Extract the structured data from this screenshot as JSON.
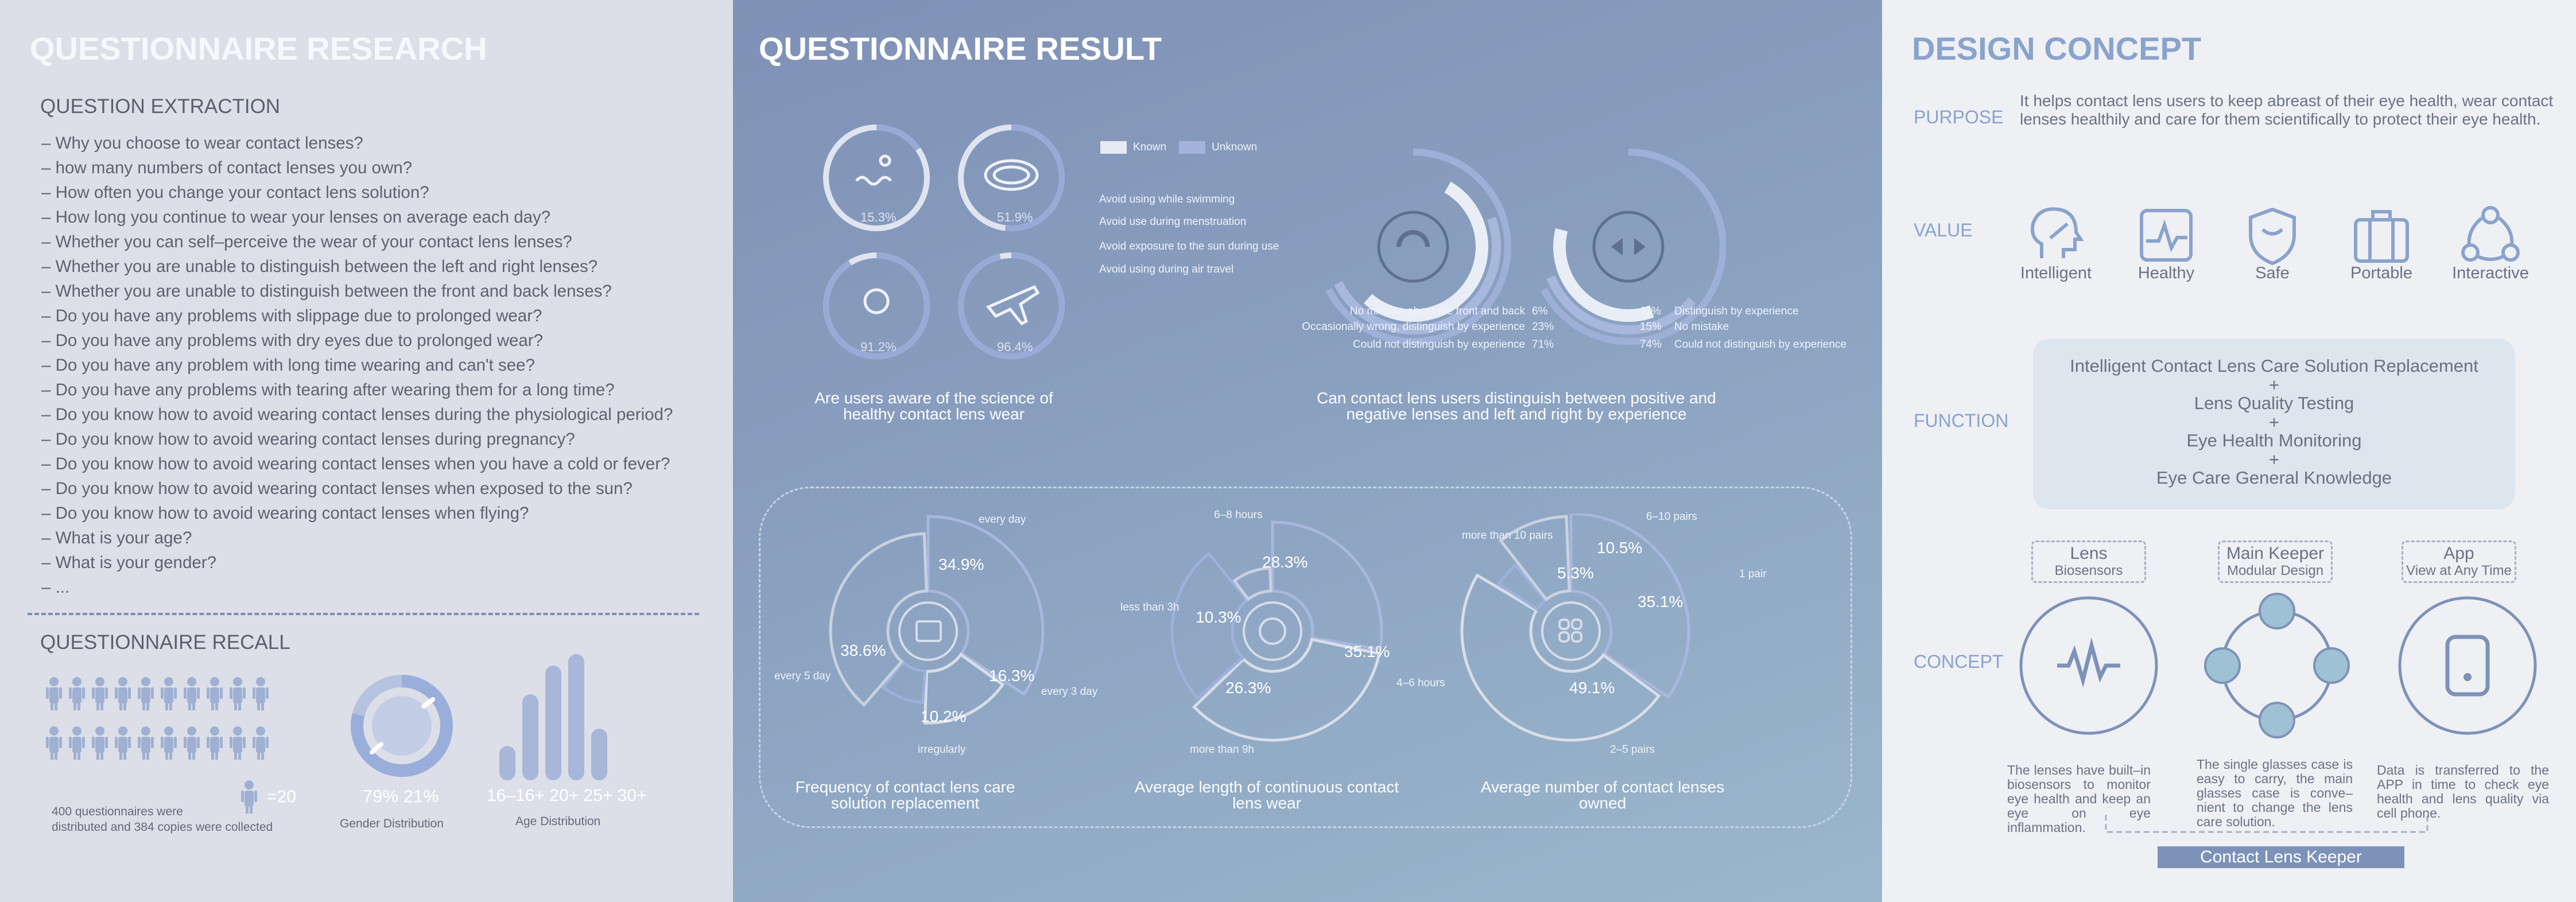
{
  "research": {
    "title": "QUESTIONNAIRE RESEARCH",
    "extraction_heading": "QUESTION EXTRACTION",
    "questions": [
      "– Why you choose to wear contact lenses?",
      "– how many numbers of contact lenses you own?",
      "– How often you change your contact lens solution?",
      "– How long you continue to wear your lenses on average each day?",
      "– Whether you can self–perceive the wear of your contact lens lenses?",
      "– Whether you are unable to distinguish between the left and right lenses?",
      "– Whether you are unable to distinguish between the front and back lenses?",
      "– Do you have any problems with slippage due to prolonged wear?",
      "– Do you have any problems with dry eyes due to prolonged wear?",
      "– Do you have any problem with long time wearing and can't see?",
      "– Do you have any problems with tearing after wearing them for a long time?",
      "– Do you know how to avoid wearing contact lenses during the physiological period?",
      "– Do you know how to avoid wearing contact lenses during pregnancy?",
      "– Do you know how to avoid wearing contact lenses when you have a cold or fever?",
      "– Do you know how to avoid wearing contact lenses when exposed to the sun?",
      "– Do you know how to avoid wearing contact lenses when flying?",
      "– What is your age?",
      "– What is your gender?",
      "– ..."
    ],
    "recall_heading": "QUESTIONNAIRE RECALL",
    "count_label": "=20",
    "collected_1": "400 questionnaires were",
    "collected_2": "distributed and 384 copies were collected",
    "gender_values": "79%  21%",
    "gender_caption": "Gender Distribution",
    "age_labels": "16–16+ 20+ 25+ 30+",
    "age_caption": "Age Distribution"
  },
  "result": {
    "title": "QUESTIONNAIRE RESULT",
    "legend_known": "Known",
    "legend_unknown": "Unknown",
    "aware_items": [
      "Avoid using while swimming",
      "Avoid use during menstruation",
      "Avoid exposure to the sun during use",
      "Avoid using during air travel"
    ],
    "aware_values": [
      "15.3%",
      "51.9%",
      "91.2%",
      "96.4%"
    ],
    "aware_caption": "Are users aware of the science of healthy contact lens wear",
    "fb_items": [
      "No mistake about the front and back",
      "Occasionally wrong, distinguish by experience",
      "Could not distinguish by experience"
    ],
    "fb_values": [
      "6%",
      "23%",
      "71%"
    ],
    "lr_values": [
      "11%",
      "15%",
      "74%"
    ],
    "lr_items": [
      "Distinguish by experience",
      "No mistake",
      "Could not distinguish by experience"
    ],
    "distinguish_caption": "Can contact lens users distinguish between positive and negative lenses and left and right by experience",
    "freq": {
      "values": [
        "34.9%",
        "16.3%",
        "10.2%",
        "38.6%"
      ],
      "labels": [
        "every day",
        "every 3 day",
        "irregularly",
        "every 5 day"
      ],
      "caption": "Frequency of contact lens care solution replacement"
    },
    "length": {
      "values": [
        "28.3%",
        "35.1%",
        "26.3%",
        "10.3%"
      ],
      "labels": [
        "6–8 hours",
        "4–6 hours",
        "more than 9h",
        "less than 3h"
      ],
      "caption": "Average length of continuous contact lens wear"
    },
    "number": {
      "values": [
        "35.1%",
        "49.1%",
        "5.3%",
        "10.5%"
      ],
      "labels": [
        "1 pair",
        "2–5 pairs",
        "more than 10 pairs",
        "6–10 pairs"
      ],
      "caption": "Average number of contact lenses owned"
    }
  },
  "design": {
    "title": "DESIGN CONCEPT",
    "purpose_label": "PURPOSE",
    "purpose_text": "It helps contact lens users to keep abreast of their eye health, wear contact lenses healthily and care for them scientifically to protect their eye health.",
    "value_label": "VALUE",
    "values": [
      "Intelligent",
      "Healthy",
      "Safe",
      "Portable",
      "Interactive"
    ],
    "function_label": "FUNCTION",
    "functions": [
      "Intelligent Contact Lens Care Solution Replacement",
      "+",
      "Lens Quality Testing",
      "+",
      "Eye Health Monitoring",
      "+",
      "Eye Care General Knowledge"
    ],
    "concept_label": "CONCEPT",
    "modules": [
      {
        "name": "Lens",
        "sub": "Biosensors"
      },
      {
        "name": "Main Keeper",
        "sub": "Modular Design"
      },
      {
        "name": "App",
        "sub": "View at Any Time"
      }
    ],
    "descs": [
      "The lenses have built–in biosensors to monitor eye health and keep an eye on eye inflammation.",
      "The single glasses case is easy to carry, the main glasses case is conve– nient to change the lens care solution.",
      "Data is transferred to the APP in time to check eye health and lens quality via cell phone."
    ],
    "product": "Contact Lens Keeper"
  }
}
